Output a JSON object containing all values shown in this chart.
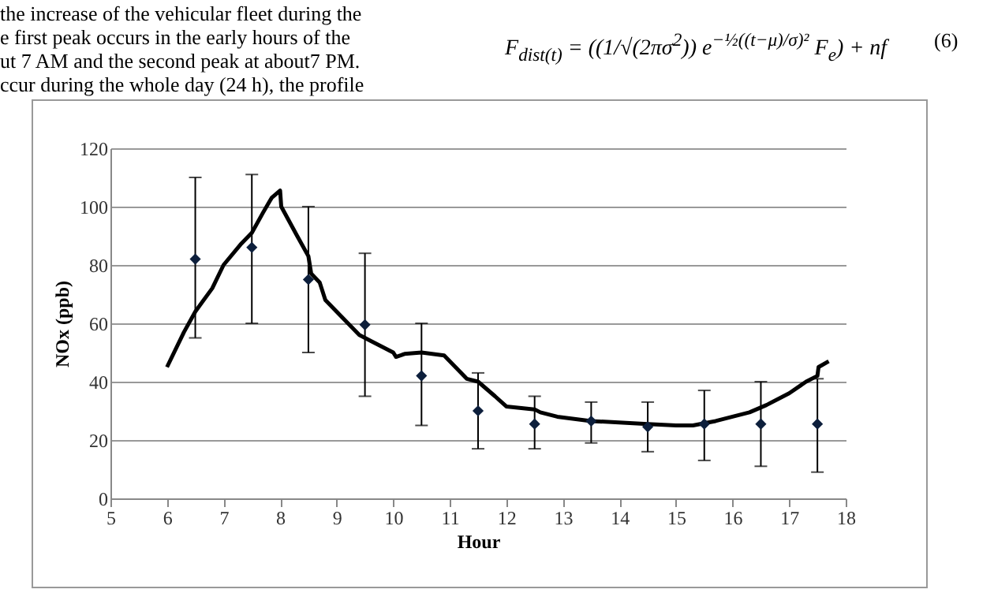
{
  "chart_data": {
    "type": "scatter",
    "xlabel": "Hour",
    "ylabel": "NOx (ppb)",
    "annotations": [
      "the increase of the vehicular fleet during the",
      "e first peak occurs in the early hours of the",
      "ut 7 AM and the second peak at about7 PM.",
      "ccur during the whole day (24 h), the profile",
      "F$_{dist(t)}$ = ((1/√(2πσ$^{2}$)) e$^{−½((t−μ)/σ)²}$ F$_{e}$) + nf",
      "(6)"
    ],
    "xlim": [
      5,
      18
    ],
    "xticks": [
      5,
      6,
      7,
      8,
      9,
      10,
      11,
      12,
      13,
      14,
      15,
      16,
      17,
      18
    ],
    "ylim": [
      0,
      120
    ],
    "yticks": [
      0,
      20,
      40,
      60,
      80,
      100,
      120
    ],
    "grid": "y",
    "series": [
      {
        "type": "line",
        "color": "#000000",
        "line_style": "solid",
        "x": [
          6,
          6.3,
          6.5,
          6.8,
          7,
          7.3,
          7.5,
          7.7,
          7.85,
          8,
          8.02,
          8.3,
          8.5,
          8.55,
          8.7,
          8.8,
          9,
          9.2,
          9.4,
          9.6,
          10,
          10.05,
          10.2,
          10.5,
          10.9,
          11.1,
          11.3,
          11.5,
          11.8,
          12,
          12.5,
          12.6,
          12.9,
          13.5,
          14.5,
          15,
          15.3,
          15.7,
          16,
          16.3,
          16.6,
          17,
          17.3,
          17.5,
          17.52,
          17.7
        ],
        "values": [
          45,
          57,
          64,
          72,
          80,
          87,
          91,
          98,
          103,
          105.5,
          100,
          90,
          83,
          77,
          74,
          68,
          64,
          60,
          56,
          54,
          50,
          48.5,
          49.5,
          50,
          49,
          45,
          41,
          40,
          35,
          31.5,
          30.5,
          29.5,
          28,
          26.5,
          25.5,
          25,
          25,
          26.5,
          28,
          29.5,
          32,
          36,
          40,
          42,
          45,
          47
        ]
      },
      {
        "type": "scatter",
        "color": "#0d1f3c",
        "marker": "diamond",
        "x": [
          6.5,
          7.5,
          8.5,
          9.5,
          10.5,
          11.5,
          12.5,
          13.5,
          14.5,
          15.5,
          16.5,
          17.5
        ],
        "values": [
          82,
          86,
          75,
          59.5,
          42,
          30,
          25.5,
          26.5,
          24.5,
          25.5,
          25.5,
          25.5
        ],
        "errors": [
          [
            55,
            110
          ],
          [
            60,
            111
          ],
          [
            50,
            100
          ],
          [
            35,
            84
          ],
          [
            25,
            60
          ],
          [
            17,
            43
          ],
          [
            17,
            35
          ],
          [
            19,
            33
          ],
          [
            16,
            33
          ],
          [
            13,
            37
          ],
          [
            11,
            40
          ],
          [
            9,
            41
          ]
        ]
      }
    ]
  }
}
